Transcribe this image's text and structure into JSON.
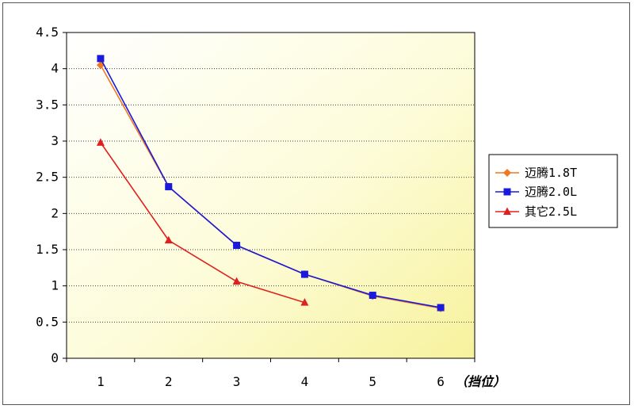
{
  "chart_data": {
    "type": "line",
    "title": "",
    "xlabel": "（挡位）",
    "ylabel": "",
    "x_ticks": [
      "1",
      "2",
      "3",
      "4",
      "5",
      "6"
    ],
    "y_ticks": [
      "0",
      "0.5",
      "1",
      "1.5",
      "2",
      "2.5",
      "3",
      "3.5",
      "4",
      "4.5"
    ],
    "ylim": [
      0,
      4.5
    ],
    "xlim": [
      0.5,
      6.5
    ],
    "grid": "horizontal dotted",
    "legend_position": "right",
    "series": [
      {
        "name": "迈腾1.8T",
        "color": "#f07820",
        "marker": "diamond",
        "x": [
          1,
          2,
          3,
          4,
          5,
          6
        ],
        "y": [
          4.05,
          2.37,
          1.56,
          1.16,
          0.86,
          0.69
        ]
      },
      {
        "name": "迈腾2.0L",
        "color": "#1a1adc",
        "marker": "square",
        "x": [
          1,
          2,
          3,
          4,
          5,
          6
        ],
        "y": [
          4.14,
          2.37,
          1.56,
          1.16,
          0.87,
          0.7
        ]
      },
      {
        "name": "其它2.5L",
        "color": "#e02020",
        "marker": "triangle",
        "x": [
          1,
          2,
          3,
          4
        ],
        "y": [
          2.98,
          1.63,
          1.06,
          0.77
        ]
      }
    ]
  }
}
